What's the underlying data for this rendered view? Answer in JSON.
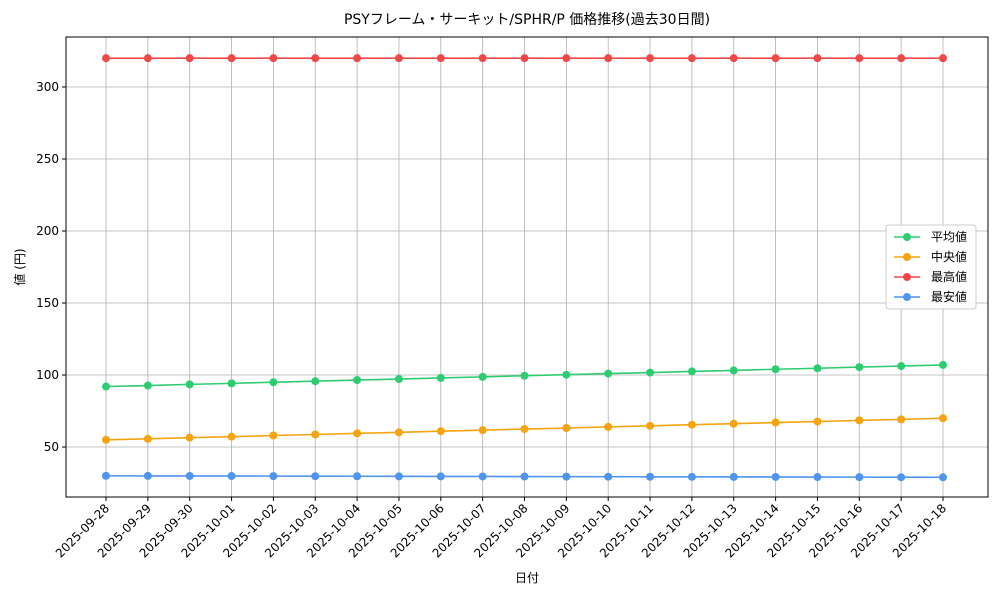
{
  "chart_data": {
    "type": "line",
    "title": "PSYフレーム・サーキット/SPHR/P 価格推移(過去30日間)",
    "x_label": "日付",
    "y_label": "値 (円)",
    "categories": [
      "2025-09-28",
      "2025-09-29",
      "2025-09-30",
      "2025-10-01",
      "2025-10-02",
      "2025-10-03",
      "2025-10-04",
      "2025-10-05",
      "2025-10-06",
      "2025-10-07",
      "2025-10-08",
      "2025-10-09",
      "2025-10-10",
      "2025-10-11",
      "2025-10-12",
      "2025-10-13",
      "2025-10-14",
      "2025-10-15",
      "2025-10-16",
      "2025-10-17",
      "2025-10-18"
    ],
    "series": [
      {
        "name": "平均値",
        "color": "#2ecc71",
        "values": [
          92.0,
          92.7,
          93.5,
          94.2,
          95.0,
          95.7,
          96.5,
          97.2,
          98.0,
          98.7,
          99.5,
          100.2,
          101.0,
          101.7,
          102.5,
          103.2,
          104.0,
          104.7,
          105.5,
          106.2,
          107.0
        ]
      },
      {
        "name": "中央値",
        "color": "#f5a30f",
        "values": [
          55.0,
          55.7,
          56.5,
          57.2,
          58.0,
          58.7,
          59.5,
          60.2,
          61.0,
          61.7,
          62.5,
          63.2,
          64.0,
          64.7,
          65.5,
          66.2,
          67.0,
          67.7,
          68.5,
          69.2,
          70.0
        ]
      },
      {
        "name": "最高値",
        "color": "#f04848",
        "values": [
          320,
          320,
          320,
          320,
          320,
          320,
          320,
          320,
          320,
          320,
          320,
          320,
          320,
          320,
          320,
          320,
          320,
          320,
          320,
          320,
          320
        ]
      },
      {
        "name": "最安値",
        "color": "#4f94ee",
        "values": [
          30.0,
          29.95,
          29.9,
          29.85,
          29.8,
          29.75,
          29.7,
          29.65,
          29.6,
          29.55,
          29.5,
          29.45,
          29.4,
          29.35,
          29.3,
          29.25,
          29.2,
          29.15,
          29.1,
          29.05,
          29.0
        ]
      }
    ],
    "ylim": [
      15.3,
      334.7
    ],
    "yticks": [
      50,
      100,
      150,
      200,
      250,
      300
    ],
    "grid": true,
    "legend": "center right"
  }
}
